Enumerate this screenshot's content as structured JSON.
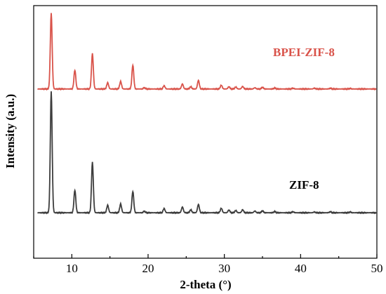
{
  "chart_data": {
    "type": "line",
    "xlabel": "2-theta (°)",
    "ylabel": "Intensity (a.u.)",
    "xlim": [
      5,
      50
    ],
    "ylim": [
      0,
      100
    ],
    "x_ticks": [
      10,
      20,
      30,
      40,
      50
    ],
    "y_ticks_shown": false,
    "grid": false,
    "legend": "none",
    "series": [
      {
        "name": "ZIF-8",
        "color": "#3d3d3d",
        "baseline": 18,
        "peaks": [
          [
            7.3,
            48
          ],
          [
            10.4,
            9
          ],
          [
            12.7,
            20
          ],
          [
            14.7,
            3
          ],
          [
            16.4,
            3.5
          ],
          [
            18.0,
            8.5
          ],
          [
            19.5,
            0.6
          ],
          [
            22.1,
            1.7
          ],
          [
            24.5,
            2.3
          ],
          [
            25.6,
            1.2
          ],
          [
            26.6,
            3.3
          ],
          [
            29.6,
            1.8
          ],
          [
            30.6,
            1.1
          ],
          [
            31.5,
            0.9
          ],
          [
            32.4,
            1.2
          ],
          [
            34.0,
            0.7
          ],
          [
            35.0,
            0.8
          ],
          [
            36.6,
            0.5
          ],
          [
            39.0,
            0.4
          ],
          [
            41.8,
            0.3
          ],
          [
            43.9,
            0.4
          ],
          [
            46.5,
            0.3
          ]
        ]
      },
      {
        "name": "BPEI-ZIF-8",
        "color": "#d9534a",
        "baseline": 67,
        "peaks": [
          [
            7.3,
            30
          ],
          [
            10.4,
            7.5
          ],
          [
            12.7,
            14
          ],
          [
            14.7,
            2.5
          ],
          [
            16.4,
            3
          ],
          [
            18.0,
            9.5
          ],
          [
            19.5,
            0.5
          ],
          [
            22.1,
            1.3
          ],
          [
            24.5,
            2
          ],
          [
            25.6,
            0.9
          ],
          [
            26.6,
            3.4
          ],
          [
            29.6,
            1.5
          ],
          [
            30.6,
            0.9
          ],
          [
            31.5,
            0.8
          ],
          [
            32.4,
            1
          ],
          [
            34.0,
            0.5
          ],
          [
            35.0,
            0.7
          ],
          [
            36.6,
            0.4
          ],
          [
            39.0,
            0.3
          ],
          [
            41.8,
            0.3
          ],
          [
            43.9,
            0.3
          ],
          [
            46.5,
            0.2
          ]
        ]
      }
    ],
    "annotations": [
      {
        "text": "BPEI-ZIF-8",
        "color": "#d9534a"
      },
      {
        "text": "ZIF-8",
        "color": "#000000"
      }
    ]
  }
}
